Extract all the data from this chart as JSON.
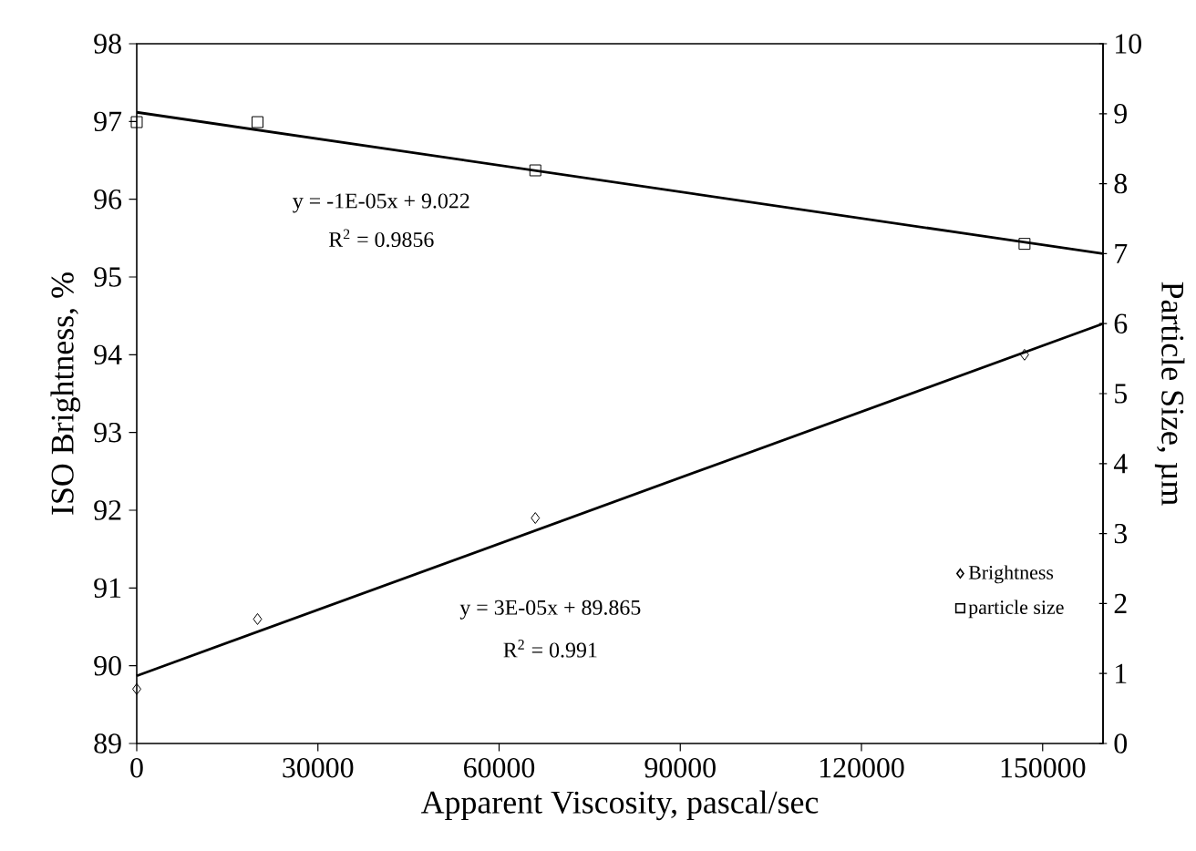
{
  "chart_data": {
    "type": "scatter",
    "xlabel": "Apparent Viscosity, pascal/sec",
    "ylabel": "ISO Brightness, %",
    "y2label": "Particle Size, µm",
    "xlim": [
      0,
      160000
    ],
    "xticks": [
      0,
      30000,
      60000,
      90000,
      120000,
      150000
    ],
    "ylim": [
      89,
      98
    ],
    "yticks": [
      89,
      90,
      91,
      92,
      93,
      94,
      95,
      96,
      97,
      98
    ],
    "y2lim": [
      0,
      10
    ],
    "y2ticks": [
      0,
      1,
      2,
      3,
      4,
      5,
      6,
      7,
      8,
      9,
      10
    ],
    "legend": "bottom right",
    "series": [
      {
        "name": "Brightness",
        "marker": "diamond",
        "color": "#000000",
        "x": [
          0,
          20000,
          66000,
          147000
        ],
        "values": [
          89.7,
          90.6,
          91.9,
          94.0
        ]
      },
      {
        "name": "particle size",
        "marker": "square",
        "axis": "y2",
        "color": "#000000",
        "x": [
          0,
          20000,
          66000,
          147000
        ],
        "values": [
          8.88,
          8.88,
          8.19,
          7.14
        ]
      },
      {
        "type": "line",
        "marker": "none",
        "line_style": "solid",
        "color": "#000000",
        "x": [
          0,
          160000
        ],
        "values": [
          89.87,
          94.4
        ]
      },
      {
        "type": "line",
        "marker": "none",
        "line_style": "solid",
        "axis": "y2",
        "color": "#000000",
        "x": [
          0,
          160000
        ],
        "values": [
          9.02,
          7.0
        ]
      }
    ],
    "annotations": [
      "y = -1E-05x + 9.022",
      "R$^{2}$ = 0.9856",
      "y = 3E-05x + 89.865",
      "R$^{2}$ = 0.991"
    ]
  }
}
